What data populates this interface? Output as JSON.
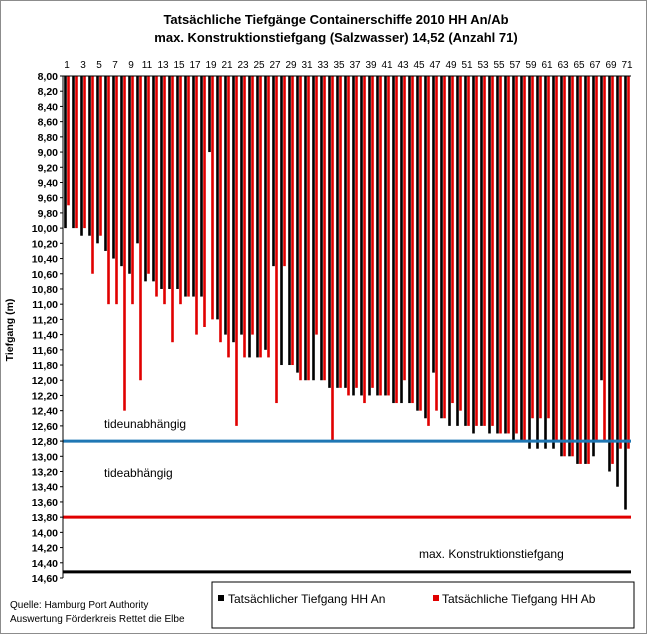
{
  "chart_data": {
    "type": "bar",
    "title": "Tatsächliche Tiefgänge Containerschiffe 2010 HH An/Ab",
    "subtitle": "max. Konstruktionstiefgang (Salzwasser) 14,52 (Anzahl 71)",
    "ylabel": "Tiefgang (m)",
    "ylim": [
      8.0,
      14.6
    ],
    "y_inverted": true,
    "y_ticks": [
      "8,00",
      "8,20",
      "8,40",
      "8,60",
      "8,80",
      "9,00",
      "9,20",
      "9,40",
      "9,60",
      "9,80",
      "10,00",
      "10,20",
      "10,40",
      "10,60",
      "10,80",
      "11,00",
      "11,20",
      "11,40",
      "11,60",
      "11,80",
      "12,00",
      "12,20",
      "12,40",
      "12,60",
      "12,80",
      "13,00",
      "13,20",
      "13,40",
      "13,60",
      "13,80",
      "14,00",
      "14,20",
      "14,40",
      "14,60"
    ],
    "x_position": "top",
    "categories": [
      1,
      2,
      3,
      4,
      5,
      6,
      7,
      8,
      9,
      10,
      11,
      12,
      13,
      14,
      15,
      16,
      17,
      18,
      19,
      20,
      21,
      22,
      23,
      24,
      25,
      26,
      27,
      28,
      29,
      30,
      31,
      32,
      33,
      34,
      35,
      36,
      37,
      38,
      39,
      40,
      41,
      42,
      43,
      44,
      45,
      46,
      47,
      48,
      49,
      50,
      51,
      52,
      53,
      54,
      55,
      56,
      57,
      58,
      59,
      60,
      61,
      62,
      63,
      64,
      65,
      66,
      67,
      68,
      69,
      70,
      71
    ],
    "x_tick_labels": [
      "1",
      "3",
      "5",
      "7",
      "9",
      "11",
      "13",
      "15",
      "17",
      "19",
      "21",
      "23",
      "25",
      "27",
      "29",
      "31",
      "33",
      "35",
      "37",
      "39",
      "41",
      "43",
      "45",
      "47",
      "49",
      "51",
      "53",
      "55",
      "57",
      "59",
      "61",
      "63",
      "65",
      "67",
      "69",
      "71"
    ],
    "series": [
      {
        "name": "Tatsächlicher Tiefgang HH An",
        "color": "#000000",
        "values": [
          10.0,
          10.0,
          10.1,
          10.1,
          10.2,
          10.3,
          10.4,
          10.5,
          10.6,
          10.2,
          10.7,
          10.7,
          10.8,
          10.8,
          10.8,
          10.9,
          10.9,
          10.9,
          9.0,
          11.2,
          11.4,
          11.5,
          11.4,
          11.7,
          11.7,
          11.6,
          10.5,
          11.8,
          11.8,
          11.9,
          12.0,
          12.0,
          12.0,
          12.1,
          12.1,
          12.1,
          12.2,
          12.2,
          12.2,
          12.2,
          12.2,
          12.3,
          12.3,
          12.3,
          12.4,
          12.5,
          11.9,
          12.5,
          12.6,
          12.6,
          12.6,
          12.7,
          12.6,
          12.7,
          12.7,
          12.7,
          12.8,
          12.8,
          12.9,
          12.9,
          12.9,
          12.9,
          13.0,
          13.0,
          13.1,
          13.1,
          13.0,
          12.0,
          13.2,
          13.4,
          13.7
        ]
      },
      {
        "name": "Tatsächliche Tiefgang HH Ab",
        "color": "#e00000",
        "values": [
          9.7,
          10.0,
          10.0,
          10.6,
          10.1,
          11.0,
          11.0,
          12.4,
          11.0,
          12.0,
          10.6,
          10.9,
          11.0,
          11.5,
          11.0,
          10.9,
          11.4,
          11.3,
          11.2,
          11.5,
          11.7,
          12.6,
          11.7,
          11.4,
          11.7,
          11.7,
          12.3,
          10.5,
          11.8,
          12.0,
          12.0,
          11.4,
          12.0,
          12.8,
          12.1,
          12.2,
          12.1,
          12.3,
          12.1,
          12.2,
          12.2,
          12.3,
          12.0,
          12.3,
          12.4,
          12.6,
          12.4,
          12.5,
          12.3,
          12.4,
          12.6,
          12.6,
          12.6,
          12.6,
          12.7,
          12.7,
          12.7,
          12.8,
          12.5,
          12.5,
          12.5,
          12.8,
          13.0,
          13.0,
          13.1,
          13.1,
          12.8,
          12.8,
          13.1,
          12.9,
          12.9
        ]
      }
    ],
    "reference_lines": [
      {
        "label": "tideunabhängig",
        "value": 12.8,
        "color": "#1f77b4"
      },
      {
        "label": "tideabhängig",
        "value": 13.8,
        "color": "#e00000"
      },
      {
        "label": "max. Konstruktionstiefgang",
        "value": 14.52,
        "color": "#000000"
      }
    ],
    "legend": {
      "placement": "bottom-right",
      "entries": [
        "Tatsächlicher Tiefgang HH An",
        "Tatsächliche Tiefgang HH Ab"
      ]
    },
    "source_lines": [
      "Quelle: Hamburg Port Authority",
      "Auswertung Förderkreis Rettet die Elbe"
    ],
    "grid": false
  }
}
